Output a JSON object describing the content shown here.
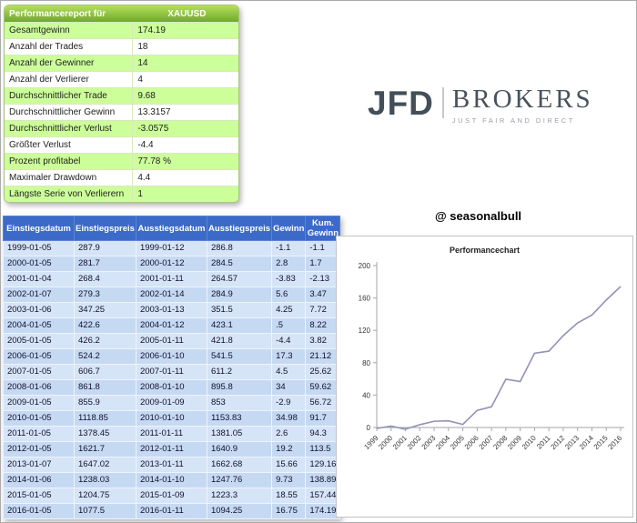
{
  "performance_report": {
    "header_label": "Performancereport für",
    "symbol": "XAUUSD",
    "rows": [
      {
        "label": "Gesamtgewinn",
        "value": "174.19"
      },
      {
        "label": "Anzahl der Trades",
        "value": "18"
      },
      {
        "label": "Anzahl der Gewinner",
        "value": "14"
      },
      {
        "label": "Anzahl der Verlierer",
        "value": "4"
      },
      {
        "label": "Durchschnittlicher Trade",
        "value": "9.68"
      },
      {
        "label": "Durchschnittlicher Gewinn",
        "value": "13.3157"
      },
      {
        "label": "Durchschnittlicher Verlust",
        "value": "-3.0575"
      },
      {
        "label": "Größter Verlust",
        "value": "-4.4"
      },
      {
        "label": "Prozent profitabel",
        "value": "77.78 %"
      },
      {
        "label": "Maximaler Drawdown",
        "value": "4.4"
      },
      {
        "label": "Längste Serie von Verlierern",
        "value": "1"
      }
    ]
  },
  "trades_table": {
    "columns": [
      "Einstiegsdatum",
      "Einstiegspreis",
      "Ausstiegsdatum",
      "Ausstiegspreis",
      "Gewinn",
      "Kum. Gewinn"
    ],
    "rows": [
      [
        "1999-01-05",
        "287.9",
        "1999-01-12",
        "286.8",
        "-1.1",
        "-1.1"
      ],
      [
        "2000-01-05",
        "281.7",
        "2000-01-12",
        "284.5",
        "2.8",
        "1.7"
      ],
      [
        "2001-01-04",
        "268.4",
        "2001-01-11",
        "264.57",
        "-3.83",
        "-2.13"
      ],
      [
        "2002-01-07",
        "279.3",
        "2002-01-14",
        "284.9",
        "5.6",
        "3.47"
      ],
      [
        "2003-01-06",
        "347.25",
        "2003-01-13",
        "351.5",
        "4.25",
        "7.72"
      ],
      [
        "2004-01-05",
        "422.6",
        "2004-01-12",
        "423.1",
        ".5",
        "8.22"
      ],
      [
        "2005-01-05",
        "426.2",
        "2005-01-11",
        "421.8",
        "-4.4",
        "3.82"
      ],
      [
        "2006-01-05",
        "524.2",
        "2006-01-10",
        "541.5",
        "17.3",
        "21.12"
      ],
      [
        "2007-01-05",
        "606.7",
        "2007-01-11",
        "611.2",
        "4.5",
        "25.62"
      ],
      [
        "2008-01-06",
        "861.8",
        "2008-01-10",
        "895.8",
        "34",
        "59.62"
      ],
      [
        "2009-01-05",
        "855.9",
        "2009-01-09",
        "853",
        "-2.9",
        "56.72"
      ],
      [
        "2010-01-05",
        "1118.85",
        "2010-01-10",
        "1153.83",
        "34.98",
        "91.7"
      ],
      [
        "2011-01-05",
        "1378.45",
        "2011-01-11",
        "1381.05",
        "2.6",
        "94.3"
      ],
      [
        "2012-01-05",
        "1621.7",
        "2012-01-11",
        "1640.9",
        "19.2",
        "113.5"
      ],
      [
        "2013-01-07",
        "1647.02",
        "2013-01-11",
        "1662.68",
        "15.66",
        "129.16"
      ],
      [
        "2014-01-06",
        "1238.03",
        "2014-01-10",
        "1247.76",
        "9.73",
        "138.89"
      ],
      [
        "2015-01-05",
        "1204.75",
        "2015-01-09",
        "1223.3",
        "18.55",
        "157.44"
      ],
      [
        "2016-01-05",
        "1077.5",
        "2016-01-11",
        "1094.25",
        "16.75",
        "174.19"
      ]
    ]
  },
  "logo": {
    "jfd": "JFD",
    "brokers": "BROKERS",
    "tagline": "JUST FAIR AND DIRECT"
  },
  "handle": "@ seasonalbull",
  "chart_data": {
    "type": "line",
    "title": "Performancechart",
    "series_name": "Kum. Gewinn",
    "x": [
      "1999",
      "2000",
      "2001",
      "2002",
      "2003",
      "2004",
      "2005",
      "2006",
      "2007",
      "2008",
      "2009",
      "2010",
      "2011",
      "2012",
      "2013",
      "2014",
      "2015",
      "2016"
    ],
    "values": [
      -1.1,
      1.7,
      -2.13,
      3.47,
      7.72,
      8.22,
      3.82,
      21.12,
      25.62,
      59.62,
      56.72,
      91.7,
      94.3,
      113.5,
      129.16,
      138.89,
      157.44,
      174.19
    ],
    "xlabel": "",
    "ylabel": "",
    "ylim": [
      0,
      200
    ],
    "yticks": [
      0,
      40,
      80,
      120,
      160,
      200
    ],
    "grid": false,
    "legend": false,
    "line_color": "#9191b8"
  },
  "colors": {
    "green_header": "#76ac2e",
    "green_row": "#ccff99",
    "blue_header": "#3b6ac9",
    "blue_row_light": "#d6e4f8",
    "blue_row_dark": "#c6d9f3"
  }
}
